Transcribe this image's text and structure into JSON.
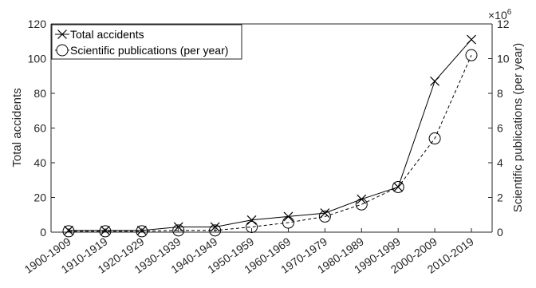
{
  "chart_data": {
    "type": "line",
    "categories": [
      "1900-1909",
      "1910-1919",
      "1920-1929",
      "1930-1939",
      "1940-1949",
      "1950-1959",
      "1960-1969",
      "1970-1979",
      "1980-1989",
      "1990-1999",
      "2000-2009",
      "2010-2019"
    ],
    "series": [
      {
        "name": "Total accidents",
        "axis": "left",
        "marker": "x",
        "line": "solid",
        "color": "#000000",
        "values": [
          1,
          1,
          1,
          3,
          3,
          7,
          9,
          11,
          19,
          26,
          87,
          111
        ]
      },
      {
        "name": "Scientific publications (per year)",
        "axis": "right",
        "marker": "circle",
        "line": "dashed",
        "color": "#000000",
        "values": [
          0.05,
          0.05,
          0.05,
          0.1,
          0.1,
          0.3,
          0.55,
          0.9,
          1.6,
          2.6,
          5.4,
          10.2
        ]
      }
    ],
    "ylabel": "Total accidents",
    "ylim": [
      0,
      120
    ],
    "yticks": [
      0,
      20,
      40,
      60,
      80,
      100,
      120
    ],
    "y2label": "Scientific publications (per year)",
    "y2lim": [
      0,
      12
    ],
    "y2ticks": [
      0,
      2,
      4,
      6,
      8,
      10,
      12
    ],
    "y2_multiplier": "×10",
    "y2_multiplier_exp": "6",
    "legend_position": "top-left",
    "grid": false
  }
}
